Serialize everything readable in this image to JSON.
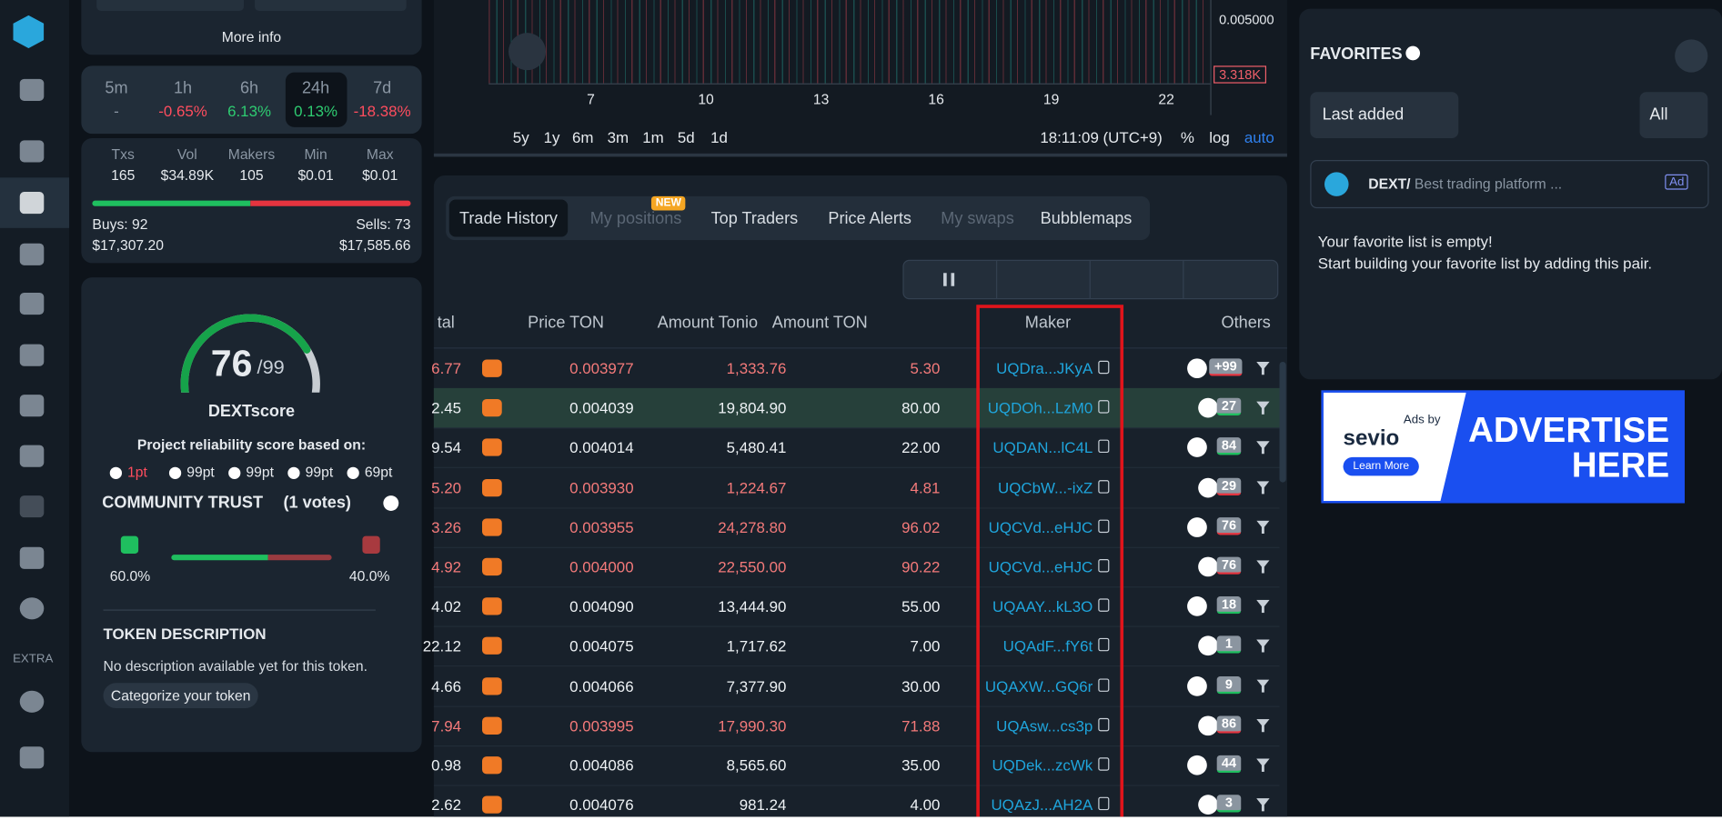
{
  "token_panel": {
    "more_info": "More info",
    "timeframes": [
      {
        "label": "5m",
        "change": "-",
        "trend": "flat"
      },
      {
        "label": "1h",
        "change": "-0.65%",
        "trend": "down"
      },
      {
        "label": "6h",
        "change": "6.13%",
        "trend": "up"
      },
      {
        "label": "24h",
        "change": "0.13%",
        "trend": "up"
      },
      {
        "label": "7d",
        "change": "-18.38%",
        "trend": "down"
      }
    ],
    "stats": [
      {
        "label": "Txs",
        "value": "165"
      },
      {
        "label": "Vol",
        "value": "$34.89K"
      },
      {
        "label": "Makers",
        "value": "105"
      },
      {
        "label": "Min",
        "value": "$0.01"
      },
      {
        "label": "Max",
        "value": "$0.01"
      }
    ],
    "buys": "Buys: 92",
    "buys_value": "$17,307.20",
    "sells": "Sells: 73",
    "sells_value": "$17,585.66",
    "score": {
      "value": 76,
      "max": 99,
      "name": "DEXTscore",
      "subtitle": "Project reliability score based on:",
      "criteria": [
        "1pt",
        "99pt",
        "99pt",
        "99pt",
        "69pt"
      ]
    },
    "community": {
      "title": "COMMUNITY TRUST",
      "votes": "(1 votes)",
      "up": "60.0%",
      "down": "40.0%"
    },
    "description": {
      "title": "TOKEN DESCRIPTION",
      "text": "No description available yet for this token.",
      "button": "Categorize your token"
    }
  },
  "sidebar": {
    "extra": "EXTRA"
  },
  "chart": {
    "price_labels": [
      "0.005000",
      "3.318K"
    ],
    "x_labels": [
      "7",
      "10",
      "13",
      "16",
      "19",
      "22"
    ],
    "ranges": [
      "5y",
      "1y",
      "6m",
      "3m",
      "1m",
      "5d",
      "1d"
    ],
    "time": "18:11:09 (UTC+9)",
    "options": [
      "%",
      "log",
      "auto"
    ]
  },
  "tabs": [
    {
      "label": "Trade History"
    },
    {
      "label": "My positions",
      "badge": "NEW"
    },
    {
      "label": "Top Traders"
    },
    {
      "label": "Price Alerts"
    },
    {
      "label": "My swaps"
    },
    {
      "label": "Bubblemaps"
    }
  ],
  "table": {
    "headers": [
      "tal",
      "Price TON",
      "Amount Tonio",
      "Amount TON",
      "Maker",
      "Others"
    ],
    "rows": [
      {
        "side": "sell",
        "cells": [
          "6.77",
          "0.003977",
          "1,333.76",
          "5.30",
          "UQDra...JKyA",
          "+99"
        ]
      },
      {
        "side": "buy",
        "cells": [
          "2.45",
          "0.004039",
          "19,804.90",
          "80.00",
          "UQDOh...LzM0",
          "27"
        ]
      },
      {
        "side": "buy",
        "cells": [
          "9.54",
          "0.004014",
          "5,480.41",
          "22.00",
          "UQDAN...lC4L",
          "84"
        ]
      },
      {
        "side": "sell",
        "cells": [
          "5.20",
          "0.003930",
          "1,224.67",
          "4.81",
          "UQCbW...-ixZ",
          "29"
        ]
      },
      {
        "side": "sell",
        "cells": [
          "3.26",
          "0.003955",
          "24,278.80",
          "96.02",
          "UQCVd...eHJC",
          "76"
        ]
      },
      {
        "side": "sell",
        "cells": [
          "4.92",
          "0.004000",
          "22,550.00",
          "90.22",
          "UQCVd...eHJC",
          "76"
        ]
      },
      {
        "side": "buy",
        "cells": [
          "4.02",
          "0.004090",
          "13,444.90",
          "55.00",
          "UQAAY...kL3O",
          "18"
        ]
      },
      {
        "side": "buy",
        "cells": [
          "22.12",
          "0.004075",
          "1,717.62",
          "7.00",
          "UQAdF...fY6t",
          "1"
        ]
      },
      {
        "side": "buy",
        "cells": [
          "4.66",
          "0.004066",
          "7,377.90",
          "30.00",
          "UQAXW...GQ6r",
          "9"
        ]
      },
      {
        "side": "sell",
        "cells": [
          "7.94",
          "0.003995",
          "17,990.30",
          "71.88",
          "UQAsw...cs3p",
          "86"
        ]
      },
      {
        "side": "buy",
        "cells": [
          "0.98",
          "0.004086",
          "8,565.60",
          "35.00",
          "UQDek...zcWk",
          "44"
        ]
      },
      {
        "side": "buy",
        "cells": [
          "2.62",
          "0.004076",
          "981.24",
          "4.00",
          "UQAzJ...AH2A",
          "3"
        ]
      }
    ]
  },
  "favorites": {
    "title": "FAVORITES",
    "sort": "Last added",
    "filter": "All",
    "promo_brand": "DEXT/",
    "promo_text": "Best trading platform ...",
    "promo_tag": "Ad",
    "empty_1": "Your favorite list is empty!",
    "empty_2": "Start building your favorite list by adding this pair."
  },
  "ad": {
    "by": "Ads by",
    "brand": "sevio",
    "button": "Learn More",
    "line1": "ADVERTISE",
    "line2": "HERE"
  }
}
